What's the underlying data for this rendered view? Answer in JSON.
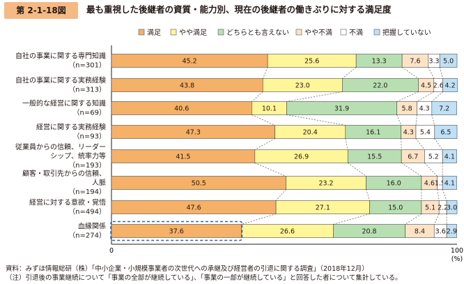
{
  "figure_tag": "第 2-1-18図",
  "figure_title": "最も重視した後継者の資質・能力別、現在の後継者の働きぶりに対する満足度",
  "footnotes": {
    "source": "資料：みずほ情報総研（株）「中小企業・小規模事業者の次世代への承継及び経営者の引退に関する調査」（2018年12月）",
    "note": "（注）引退後の事業継続について「事業の全部が継続している」、「事業の一部が継続している」と回答した者について集計している。"
  },
  "colors": {
    "manzoku": "#f5b167",
    "yaya_manzoku": "#fff599",
    "dochira": "#b8dfb2",
    "yaya_fuman": "#fde3c6",
    "fuman": "#ffffff",
    "haaku": "#bfe0f6",
    "figure_tag_bg": "#f5b983",
    "highlight": "#2b62b7"
  },
  "chart_data": {
    "type": "bar",
    "orientation": "horizontal",
    "stacked": true,
    "percent_stacked": true,
    "legend_position": "top",
    "xlim": [
      0,
      100
    ],
    "x_ticks": [
      "0",
      "100"
    ],
    "x_unit": "(%)",
    "categories": [
      {
        "label": "自社の事業に関する専門知識",
        "n": "（n=301）"
      },
      {
        "label": "自社の事業に関する実務経験",
        "n": "（n=313）"
      },
      {
        "label": "一般的な経営に関する知識",
        "n": "（n=69）"
      },
      {
        "label": "経営に関する実務経験",
        "n": "（n=93）"
      },
      {
        "label": "従業員からの信頼、リーダー",
        "label2": "シップ、統率力等",
        "n": "（n=193）"
      },
      {
        "label": "顧客・取引先からの信頼、",
        "label2": "人脈",
        "n": "（n=194）"
      },
      {
        "label": "経営に対する意欲・覚悟",
        "n": "（n=494）"
      },
      {
        "label": "血縁関係",
        "n": "（n=274）"
      }
    ],
    "highlight_category_index": 7,
    "series": [
      {
        "name": "満足",
        "color_key": "manzoku",
        "values": [
          45.2,
          43.8,
          40.6,
          47.3,
          41.5,
          50.5,
          47.6,
          37.6
        ]
      },
      {
        "name": "やや満足",
        "color_key": "yaya_manzoku",
        "values": [
          25.6,
          23.0,
          10.1,
          20.4,
          26.9,
          23.2,
          27.1,
          26.6
        ]
      },
      {
        "name": "どちらとも言えない",
        "color_key": "dochira",
        "values": [
          13.3,
          22.0,
          31.9,
          16.1,
          15.5,
          16.0,
          15.0,
          20.8
        ]
      },
      {
        "name": "やや不満",
        "color_key": "yaya_fuman",
        "values": [
          7.6,
          4.5,
          5.8,
          4.3,
          6.7,
          4.6,
          5.1,
          8.4
        ]
      },
      {
        "name": "不満",
        "color_key": "fuman",
        "values": [
          3.3,
          2.6,
          4.3,
          5.4,
          5.2,
          1.5,
          2.2,
          3.6
        ]
      },
      {
        "name": "把握していない",
        "color_key": "haaku",
        "values": [
          5.0,
          4.2,
          7.2,
          6.5,
          4.1,
          4.1,
          3.0,
          2.9
        ]
      }
    ]
  }
}
